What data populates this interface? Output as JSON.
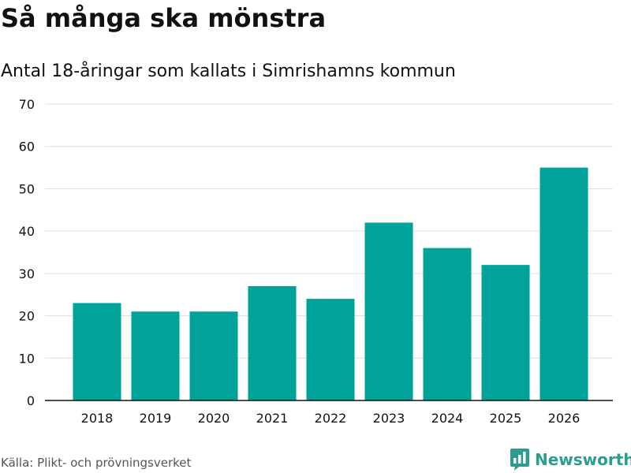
{
  "header": {
    "title": "Så många ska mönstra",
    "subtitle": "Antal 18-åringar som kallats i Simrishamns kommun"
  },
  "footer": {
    "source": "Källa: Plikt- och prövningsverket",
    "brand": "Newsworthy",
    "brand_icon": "newsworthy-logo-icon"
  },
  "colors": {
    "bar": "#00a399",
    "grid": "#dddddd",
    "axis": "#111111",
    "brand": "#2a9d8f"
  },
  "chart_data": {
    "type": "bar",
    "title": "Så många ska mönstra",
    "subtitle": "Antal 18-åringar som kallats i Simrishamns kommun",
    "categories": [
      "2018",
      "2019",
      "2020",
      "2021",
      "2022",
      "2023",
      "2024",
      "2025",
      "2026"
    ],
    "values": [
      23,
      21,
      21,
      27,
      24,
      42,
      36,
      32,
      55
    ],
    "yticks": [
      0,
      10,
      20,
      30,
      40,
      50,
      60,
      70
    ],
    "ylim": [
      0,
      70
    ],
    "xlabel": "",
    "ylabel": "",
    "grid": true,
    "legend": "none"
  }
}
